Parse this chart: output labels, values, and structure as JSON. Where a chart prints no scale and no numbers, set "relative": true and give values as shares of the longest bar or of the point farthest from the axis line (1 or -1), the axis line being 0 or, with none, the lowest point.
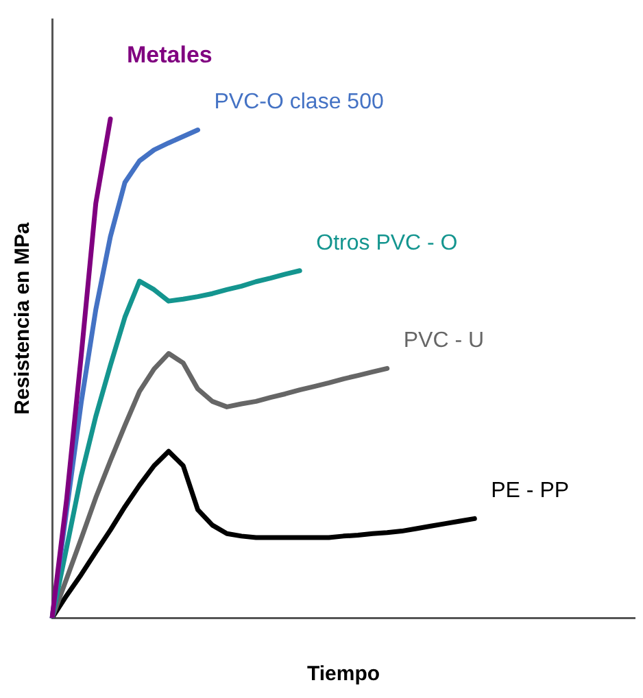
{
  "chart_data": {
    "type": "line",
    "relative": true,
    "xlabel": "Tiempo",
    "ylabel": "Resistencia en MPa",
    "categories": [
      null,
      null,
      null,
      null,
      null,
      null,
      null,
      null,
      null,
      null,
      null,
      null,
      null,
      null,
      null,
      null,
      null,
      null,
      null,
      null,
      null,
      null,
      null,
      null,
      null,
      null,
      null,
      null,
      null,
      null,
      null,
      null,
      null,
      null,
      null,
      null,
      null,
      null,
      null,
      null,
      null
    ],
    "series": [
      {
        "name": "Metales",
        "color": "#800080",
        "values": [
          0,
          0.238,
          0.526,
          0.831,
          1,
          null,
          null,
          null,
          null,
          null,
          null,
          null,
          null,
          null,
          null,
          null,
          null,
          null,
          null,
          null,
          null,
          null,
          null,
          null,
          null,
          null,
          null,
          null,
          null,
          null,
          null,
          null,
          null,
          null,
          null,
          null,
          null,
          null,
          null,
          null,
          null
        ]
      },
      {
        "name": "PVC-O clase 500",
        "color": "#4472c4",
        "values": [
          0,
          0.216,
          0.432,
          0.618,
          0.764,
          0.873,
          0.916,
          0.938,
          0.952,
          0.965,
          0.978,
          null,
          null,
          null,
          null,
          null,
          null,
          null,
          null,
          null,
          null,
          null,
          null,
          null,
          null,
          null,
          null,
          null,
          null,
          null,
          null,
          null,
          null,
          null,
          null,
          null,
          null,
          null,
          null,
          null,
          null
        ]
      },
      {
        "name": "Otros PVC - O",
        "color": "#14958f",
        "values": [
          0,
          0.141,
          0.285,
          0.404,
          0.506,
          0.603,
          0.675,
          0.658,
          0.635,
          0.639,
          0.644,
          0.65,
          0.658,
          0.665,
          0.674,
          0.681,
          0.689,
          0.696,
          null,
          null,
          null,
          null,
          null,
          null,
          null,
          null,
          null,
          null,
          null,
          null,
          null,
          null,
          null,
          null,
          null,
          null,
          null,
          null,
          null,
          null,
          null
        ]
      },
      {
        "name": "PVC - U",
        "color": "#666666",
        "values": [
          0,
          0.079,
          0.159,
          0.241,
          0.315,
          0.386,
          0.454,
          0.499,
          0.53,
          0.511,
          0.459,
          0.434,
          0.423,
          0.429,
          0.434,
          0.442,
          0.449,
          0.457,
          0.464,
          0.471,
          0.479,
          0.486,
          0.493,
          0.5,
          null,
          null,
          null,
          null,
          null,
          null,
          null,
          null,
          null,
          null,
          null,
          null,
          null,
          null,
          null,
          null,
          null
        ]
      },
      {
        "name": "PE - PP",
        "color": "#000000",
        "values": [
          0,
          0.045,
          0.087,
          0.132,
          0.176,
          0.223,
          0.266,
          0.305,
          0.334,
          0.305,
          0.217,
          0.186,
          0.169,
          0.164,
          0.161,
          0.161,
          0.161,
          0.161,
          0.161,
          0.161,
          0.164,
          0.166,
          0.169,
          0.171,
          0.174,
          0.179,
          0.184,
          0.189,
          0.194,
          0.199,
          null,
          null,
          null,
          null,
          null,
          null,
          null,
          null,
          null,
          null,
          null
        ]
      }
    ]
  }
}
